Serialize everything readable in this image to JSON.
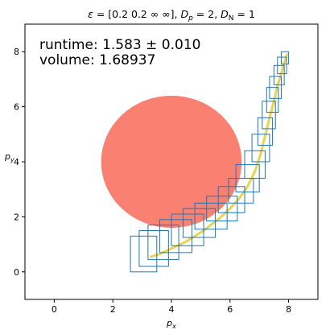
{
  "chart_data": {
    "type": "line",
    "title": "ε = [0.2 0.2 ∞ ∞], D_p = 2, D_N = 1",
    "title_parts": {
      "eps_sym": "ε",
      "eps_val": " = [0.2 0.2 ∞ ∞], ",
      "dp_base": "D",
      "dp_sub": "p",
      "dp_val": " = 2, ",
      "dn_base": "D",
      "dn_sub": "N",
      "dn_val": " = 1"
    },
    "xlabel": {
      "base": "p",
      "sub": "x"
    },
    "ylabel": {
      "base": "p",
      "sub": "y"
    },
    "xlim": [
      -1,
      9
    ],
    "ylim": [
      -1,
      9
    ],
    "xticks": [
      0,
      2,
      4,
      6,
      8
    ],
    "yticks": [
      0,
      2,
      4,
      6,
      8
    ],
    "xtick_labels": [
      "0",
      "2",
      "4",
      "6",
      "8"
    ],
    "ytick_labels": [
      "0",
      "2",
      "4",
      "6",
      "8"
    ],
    "annotations": {
      "runtime": "runtime: 1.583 ± 0.010",
      "volume": "volume: 1.68937"
    },
    "obstacle": {
      "shape": "circle",
      "center": [
        4,
        4
      ],
      "radius": 2.4,
      "color": "#fa8072"
    },
    "reachable_sets": {
      "color": "#1f77b4",
      "boxes": [
        [
          2.6,
          3.5,
          0.0,
          1.3
        ],
        [
          2.9,
          3.9,
          0.2,
          1.5
        ],
        [
          3.2,
          4.25,
          0.45,
          1.7
        ],
        [
          3.6,
          4.7,
          0.7,
          1.9
        ],
        [
          4.0,
          5.1,
          0.95,
          2.1
        ],
        [
          4.4,
          5.5,
          1.25,
          2.3
        ],
        [
          4.8,
          5.9,
          1.55,
          2.5
        ],
        [
          5.2,
          6.25,
          1.85,
          2.75
        ],
        [
          5.6,
          6.5,
          2.15,
          3.1
        ],
        [
          5.95,
          6.8,
          2.5,
          3.4
        ],
        [
          6.2,
          7.0,
          2.9,
          3.9
        ],
        [
          6.5,
          7.2,
          3.4,
          4.4
        ],
        [
          6.75,
          7.35,
          4.0,
          5.0
        ],
        [
          6.95,
          7.45,
          4.6,
          5.6
        ],
        [
          7.1,
          7.55,
          5.2,
          6.2
        ],
        [
          7.25,
          7.65,
          5.8,
          6.7
        ],
        [
          7.35,
          7.75,
          6.3,
          7.1
        ],
        [
          7.5,
          7.85,
          6.8,
          7.5
        ],
        [
          7.62,
          7.93,
          7.2,
          7.8
        ],
        [
          7.75,
          8.0,
          7.55,
          8.0
        ]
      ]
    },
    "trajectory": {
      "color": "#e8d44d",
      "x": [
        3.3,
        3.6,
        3.9,
        4.2,
        4.5,
        4.8,
        5.1,
        5.4,
        5.7,
        6.0,
        6.3,
        6.6,
        6.85,
        7.05,
        7.2,
        7.35,
        7.5,
        7.62,
        7.75,
        7.85,
        7.95
      ],
      "y": [
        0.55,
        0.65,
        0.8,
        0.95,
        1.1,
        1.3,
        1.5,
        1.75,
        2.0,
        2.3,
        2.65,
        3.1,
        3.65,
        4.3,
        4.95,
        5.6,
        6.2,
        6.75,
        7.2,
        7.6,
        7.9
      ]
    }
  }
}
